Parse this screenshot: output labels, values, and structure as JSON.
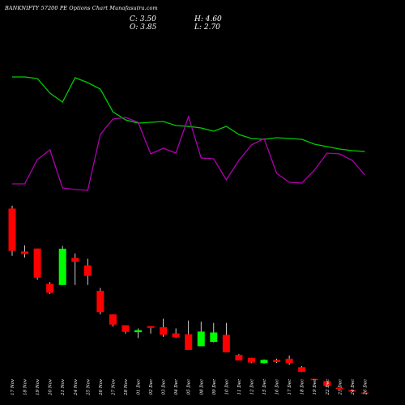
{
  "header": {
    "title": "BANKNIFTY 57200  PE Options  Chart Munafasutra.com",
    "close": "C: 3.50",
    "high": "H: 4.60",
    "open": "O: 3.85",
    "low": "L: 2.70"
  },
  "colors": {
    "background": "#000000",
    "up": "#00ff00",
    "down": "#ff0000",
    "wick": "#ffffff",
    "line_green": "#00cc00",
    "line_purple": "#b000b0"
  },
  "chart_data": [
    {
      "type": "line",
      "title": "",
      "xlabel": "",
      "ylabel": "",
      "grid": false,
      "x": [
        "17 Nov",
        "18 Nov",
        "19 Nov",
        "20 Nov",
        "21 Nov",
        "24 Nov",
        "25 Nov",
        "26 Nov",
        "27 Nov",
        "28 Nov",
        "01 Dec",
        "02 Dec",
        "03 Dec",
        "04 Dec",
        "05 Dec",
        "08 Dec",
        "09 Dec",
        "10 Dec",
        "11 Dec",
        "12 Dec",
        "15 Dec",
        "16 Dec",
        "17 Dec",
        "18 Dec",
        "19 Dec",
        "22 Dec",
        "23 Dec",
        "24 Dec",
        "26 Dec"
      ],
      "series": [
        {
          "values": [
            95,
            95,
            97,
            115,
            126,
            96,
            102,
            110,
            138,
            148,
            152,
            151,
            150,
            155,
            156,
            158,
            162,
            156,
            166,
            171,
            172,
            170,
            171,
            172,
            178,
            181,
            184,
            186,
            187
          ]
        },
        {
          "values": [
            227,
            227,
            197,
            185,
            232,
            234,
            235,
            166,
            147,
            145,
            151,
            190,
            183,
            189,
            144,
            195,
            196,
            222,
            198,
            179,
            171,
            214,
            225,
            226,
            210,
            189,
            190,
            198,
            216
          ]
        }
      ]
    },
    {
      "type": "candlestick",
      "title": "",
      "xlabel": "",
      "ylabel": "",
      "grid": false,
      "x": [
        "17 Nov",
        "18 Nov",
        "19 Nov",
        "20 Nov",
        "21 Nov",
        "24 Nov",
        "25 Nov",
        "26 Nov",
        "27 Nov",
        "28 Nov",
        "01 Dec",
        "02 Dec",
        "03 Dec",
        "04 Dec",
        "05 Dec",
        "08 Dec",
        "09 Dec",
        "10 Dec",
        "11 Dec",
        "12 Dec",
        "15 Dec",
        "16 Dec",
        "17 Dec",
        "18 Dec",
        "19 Dec",
        "22 Dec",
        "23 Dec",
        "24 Dec",
        "26 Dec"
      ],
      "ohlc": [
        {
          "o": 55.7,
          "h": 56.7,
          "l": 39.5,
          "c": 41.2
        },
        {
          "o": 41.0,
          "h": 43.1,
          "l": 38.9,
          "c": 40.1
        },
        {
          "o": 42.0,
          "h": 42.0,
          "l": 31.3,
          "c": 32.0
        },
        {
          "o": 29.9,
          "h": 30.5,
          "l": 26.4,
          "c": 26.8
        },
        {
          "o": 29.5,
          "h": 42.9,
          "l": 29.5,
          "c": 41.9
        },
        {
          "o": 38.8,
          "h": 40.3,
          "l": 29.5,
          "c": 37.5
        },
        {
          "o": 36.2,
          "h": 38.5,
          "l": 29.5,
          "c": 32.6
        },
        {
          "o": 27.5,
          "h": 28.5,
          "l": 19.4,
          "c": 20.2
        },
        {
          "o": 19.4,
          "h": 19.4,
          "l": 15.2,
          "c": 15.9
        },
        {
          "o": 15.7,
          "h": 15.7,
          "l": 12.8,
          "c": 13.4
        },
        {
          "o": 13.3,
          "h": 14.6,
          "l": 11.3,
          "c": 14.0
        },
        {
          "o": 15.4,
          "h": 15.4,
          "l": 12.8,
          "c": 14.8
        },
        {
          "o": 15.0,
          "h": 17.9,
          "l": 11.7,
          "c": 12.4
        },
        {
          "o": 12.9,
          "h": 14.6,
          "l": 11.3,
          "c": 11.5
        },
        {
          "o": 12.6,
          "h": 17.3,
          "l": 7.2,
          "c": 7.2
        },
        {
          "o": 8.5,
          "h": 16.9,
          "l": 8.5,
          "c": 13.5
        },
        {
          "o": 10.0,
          "h": 16.5,
          "l": 9.8,
          "c": 13.2
        },
        {
          "o": 12.4,
          "h": 16.5,
          "l": 6.4,
          "c": 6.4
        },
        {
          "o": 5.5,
          "h": 5.8,
          "l": 3.6,
          "c": 3.6
        },
        {
          "o": 4.5,
          "h": 4.5,
          "l": 2.7,
          "c": 2.9
        },
        {
          "o": 2.7,
          "h": 4.0,
          "l": 2.5,
          "c": 3.8
        },
        {
          "o": 3.8,
          "h": 4.2,
          "l": 2.7,
          "c": 3.1
        },
        {
          "o": 4.2,
          "h": 5.3,
          "l": 2.1,
          "c": 2.7
        },
        {
          "o": 1.3,
          "h": 1.7,
          "l": -0.4,
          "c": -0.3
        },
        {
          "o": -2.7,
          "h": -2.7,
          "l": -3.2,
          "c": -2.8
        },
        {
          "o": -3.5,
          "h": -3.5,
          "l": -5.1,
          "c": -5.1
        },
        {
          "o": -5.7,
          "h": -5.7,
          "l": -6.2,
          "c": -6.2
        },
        {
          "o": -6.6,
          "h": -6.6,
          "l": -7.1,
          "c": -7.1
        },
        {
          "o": -7.4,
          "h": -7.4,
          "l": -7.7,
          "c": -7.7
        }
      ]
    }
  ]
}
